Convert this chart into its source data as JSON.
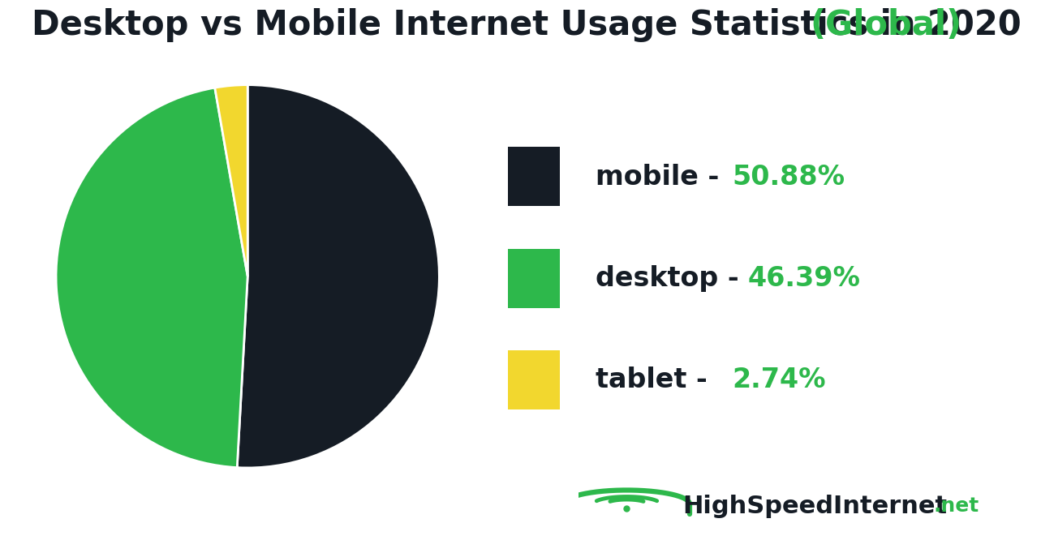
{
  "title_black": "Desktop vs Mobile Internet Usage Statistics in 2020 ",
  "title_green": "(Global)",
  "labels": [
    "mobile",
    "desktop",
    "tablet"
  ],
  "values": [
    50.88,
    46.39,
    2.74
  ],
  "colors": [
    "#151c25",
    "#2db84b",
    "#f2d72e"
  ],
  "green_color": "#2db84b",
  "dark_color": "#151c25",
  "yellow_color": "#f2d72e",
  "legend_bg": "#ebebeb",
  "bg_color": "#ffffff",
  "legend_label_texts": [
    "mobile - 50.88%",
    "desktop - 46.39%",
    "tablet - 2.74%"
  ],
  "legend_dark_parts": [
    "mobile - ",
    "desktop - ",
    "tablet - "
  ],
  "legend_green_parts": [
    "50.88%",
    "46.39%",
    "2.74%"
  ],
  "brand_main": "HighSpeedInternet",
  "brand_suffix": ".net",
  "title_fontsize": 30,
  "legend_fontsize": 24,
  "brand_main_fontsize": 22,
  "brand_suffix_fontsize": 18
}
